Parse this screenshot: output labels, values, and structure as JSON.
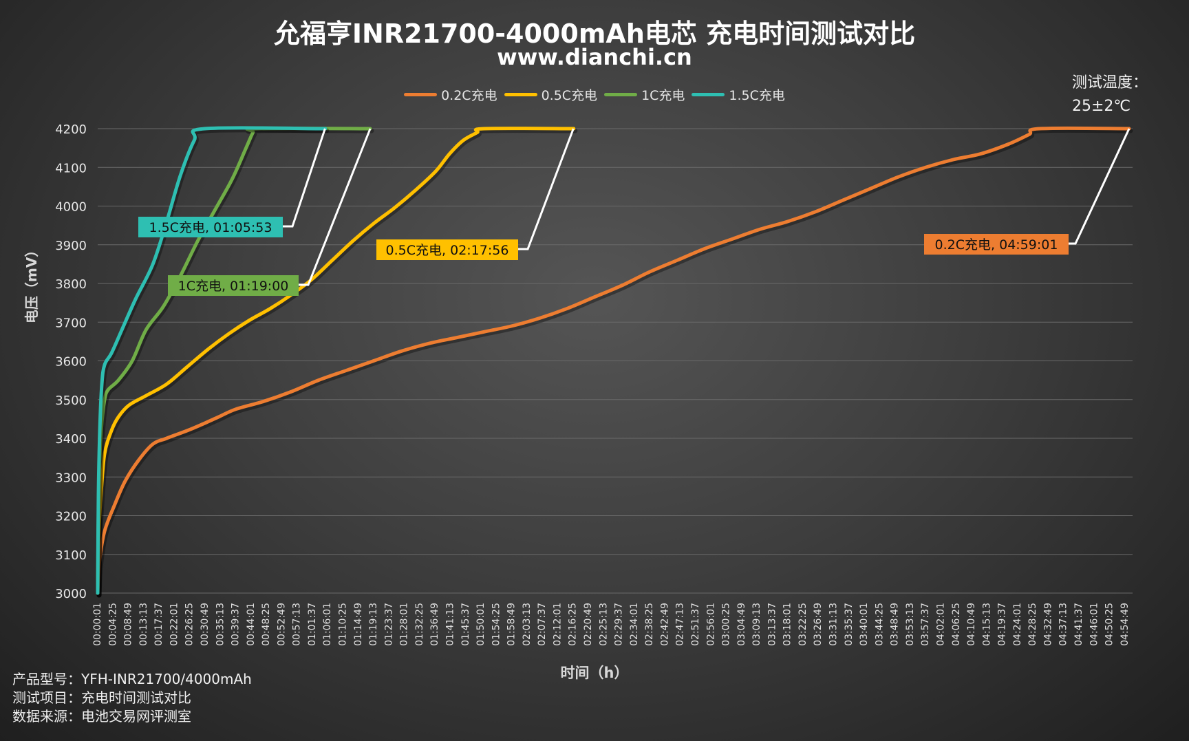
{
  "header": {
    "title": "允福亨INR21700-4000mAh电芯 充电时间测试对比",
    "subtitle": "www.dianchi.cn"
  },
  "temperature_note": {
    "line1": "测试温度：",
    "line2": "25±2℃"
  },
  "footer": {
    "model": "产品型号：YFH-INR21700/4000mAh",
    "item": "测试项目：充电时间测试对比",
    "source": "数据来源：电池交易网评测室"
  },
  "colors": {
    "s02": "#ED7D31",
    "s05": "#FFC000",
    "s1": "#70AD47",
    "s15": "#2EBFB2",
    "grid": "#6a6a6a",
    "callout_line": "#ffffff"
  },
  "chart_data": {
    "type": "line",
    "xlabel": "时间（h）",
    "ylabel": "电压（mV）",
    "ylim": [
      3000,
      4200
    ],
    "yticks": [
      3000,
      3100,
      3200,
      3300,
      3400,
      3500,
      3600,
      3700,
      3800,
      3900,
      4000,
      4100,
      4200
    ],
    "xlim_minutes": [
      0,
      300
    ],
    "x_tick_labels": [
      "00:00:01",
      "00:04:25",
      "00:08:49",
      "00:13:13",
      "00:17:37",
      "00:22:01",
      "00:26:25",
      "00:30:49",
      "00:35:13",
      "00:39:37",
      "00:44:01",
      "00:48:25",
      "00:52:49",
      "00:57:13",
      "01:01:37",
      "01:06:01",
      "01:10:25",
      "01:14:49",
      "01:19:13",
      "01:23:37",
      "01:28:01",
      "01:32:25",
      "01:36:49",
      "01:41:13",
      "01:45:37",
      "01:50:01",
      "01:54:25",
      "01:58:49",
      "02:03:13",
      "02:07:37",
      "02:12:01",
      "02:16:25",
      "02:20:49",
      "02:25:13",
      "02:29:37",
      "02:34:01",
      "02:38:25",
      "02:42:49",
      "02:47:13",
      "02:51:37",
      "02:56:01",
      "03:00:25",
      "03:04:49",
      "03:09:13",
      "03:13:37",
      "03:18:01",
      "03:22:25",
      "03:26:49",
      "03:31:13",
      "03:35:37",
      "03:40:01",
      "03:44:25",
      "03:48:49",
      "03:53:13",
      "03:57:37",
      "04:02:01",
      "04:06:25",
      "04:10:49",
      "04:15:13",
      "04:19:37",
      "04:24:01",
      "04:28:25",
      "04:32:49",
      "04:37:13",
      "04:41:37",
      "04:46:01",
      "04:50:25",
      "04:54:49"
    ],
    "legend_position": "top",
    "series": [
      {
        "name": "0.2C充电",
        "color_key": "s02",
        "callout": "0.2C充电, 04:59:01",
        "end_minutes": 299.0,
        "points": [
          [
            0,
            3000
          ],
          [
            0.5,
            3080
          ],
          [
            2,
            3160
          ],
          [
            5,
            3230
          ],
          [
            8,
            3290
          ],
          [
            12,
            3345
          ],
          [
            16,
            3385
          ],
          [
            20,
            3400
          ],
          [
            26,
            3420
          ],
          [
            30,
            3435
          ],
          [
            35,
            3455
          ],
          [
            40,
            3475
          ],
          [
            48,
            3495
          ],
          [
            56,
            3520
          ],
          [
            64,
            3550
          ],
          [
            72,
            3575
          ],
          [
            80,
            3600
          ],
          [
            88,
            3625
          ],
          [
            96,
            3645
          ],
          [
            104,
            3660
          ],
          [
            112,
            3675
          ],
          [
            120,
            3690
          ],
          [
            128,
            3710
          ],
          [
            136,
            3735
          ],
          [
            144,
            3765
          ],
          [
            152,
            3795
          ],
          [
            160,
            3830
          ],
          [
            168,
            3860
          ],
          [
            176,
            3890
          ],
          [
            184,
            3915
          ],
          [
            192,
            3940
          ],
          [
            200,
            3960
          ],
          [
            208,
            3985
          ],
          [
            216,
            4015
          ],
          [
            224,
            4045
          ],
          [
            232,
            4075
          ],
          [
            240,
            4100
          ],
          [
            248,
            4120
          ],
          [
            256,
            4135
          ],
          [
            264,
            4160
          ],
          [
            270,
            4185
          ],
          [
            273,
            4200
          ],
          [
            299,
            4200
          ]
        ]
      },
      {
        "name": "0.5C充电",
        "color_key": "s05",
        "callout": "0.5C充电, 02:17:56",
        "end_minutes": 137.9,
        "points": [
          [
            0,
            3000
          ],
          [
            0.3,
            3150
          ],
          [
            1,
            3260
          ],
          [
            2,
            3360
          ],
          [
            4,
            3420
          ],
          [
            6,
            3455
          ],
          [
            9,
            3485
          ],
          [
            14,
            3510
          ],
          [
            20,
            3540
          ],
          [
            26,
            3585
          ],
          [
            32,
            3630
          ],
          [
            38,
            3670
          ],
          [
            44,
            3705
          ],
          [
            50,
            3735
          ],
          [
            56,
            3770
          ],
          [
            62,
            3810
          ],
          [
            68,
            3860
          ],
          [
            74,
            3910
          ],
          [
            80,
            3955
          ],
          [
            86,
            3995
          ],
          [
            92,
            4040
          ],
          [
            98,
            4090
          ],
          [
            102,
            4135
          ],
          [
            106,
            4170
          ],
          [
            110,
            4190
          ],
          [
            112,
            4200
          ],
          [
            138,
            4200
          ]
        ]
      },
      {
        "name": "1C充电",
        "color_key": "s1",
        "callout": "1C充电, 01:19:00",
        "end_minutes": 79.0,
        "points": [
          [
            0,
            3000
          ],
          [
            0.2,
            3200
          ],
          [
            0.6,
            3350
          ],
          [
            1.2,
            3440
          ],
          [
            2,
            3500
          ],
          [
            3,
            3525
          ],
          [
            6,
            3550
          ],
          [
            10,
            3600
          ],
          [
            14,
            3680
          ],
          [
            19,
            3740
          ],
          [
            24,
            3820
          ],
          [
            29,
            3910
          ],
          [
            34,
            3990
          ],
          [
            39,
            4070
          ],
          [
            43,
            4150
          ],
          [
            45,
            4190
          ],
          [
            46,
            4200
          ],
          [
            79,
            4200
          ]
        ]
      },
      {
        "name": "1.5C充电",
        "color_key": "s15",
        "callout": "1.5C充电, 01:05:53",
        "end_minutes": 65.9,
        "points": [
          [
            0,
            3000
          ],
          [
            0.2,
            3250
          ],
          [
            0.6,
            3420
          ],
          [
            1.2,
            3540
          ],
          [
            2,
            3590
          ],
          [
            4,
            3620
          ],
          [
            7,
            3680
          ],
          [
            11,
            3760
          ],
          [
            16,
            3850
          ],
          [
            20,
            3960
          ],
          [
            24,
            4080
          ],
          [
            28,
            4170
          ],
          [
            31,
            4200
          ],
          [
            66,
            4200
          ]
        ]
      }
    ]
  }
}
